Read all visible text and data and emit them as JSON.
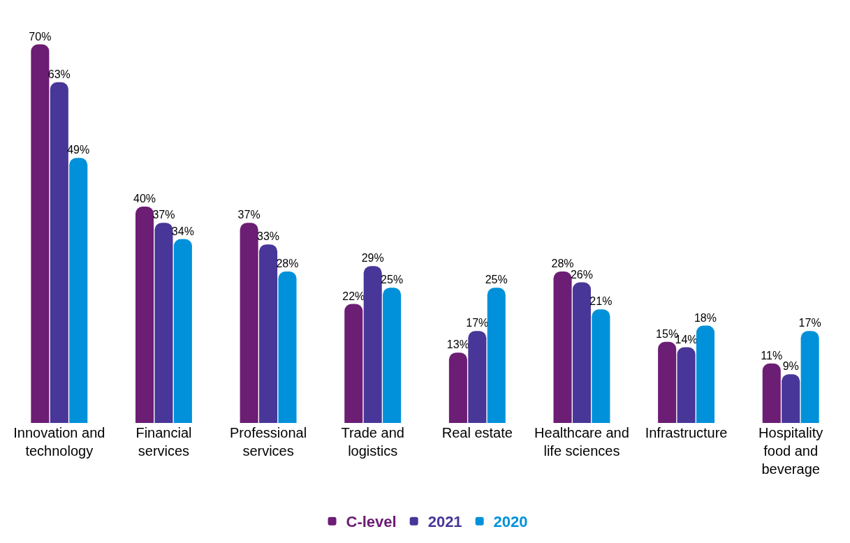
{
  "chart_data": {
    "type": "bar",
    "categories": [
      "Innovation and technology",
      "Financial services",
      "Professional services",
      "Trade and logistics",
      "Real estate",
      "Healthcare and life sciences",
      "Infrastructure",
      "Hospitality food and beverage"
    ],
    "series": [
      {
        "name": "C-level",
        "color": "#6c1d74",
        "values": [
          70,
          40,
          37,
          22,
          13,
          28,
          15,
          11
        ],
        "value_labels": [
          "70%",
          "40%",
          "37%",
          "22%",
          "13%",
          "28%",
          "15%",
          "11%"
        ]
      },
      {
        "name": "2021",
        "color": "#483698",
        "values": [
          63,
          37,
          33,
          29,
          17,
          26,
          14,
          9
        ],
        "value_labels": [
          "63%",
          "37%",
          "33%",
          "29%",
          "17%",
          "26%",
          "14%",
          "9%"
        ]
      },
      {
        "name": "2020",
        "color": "#0091da",
        "values": [
          49,
          34,
          28,
          25,
          25,
          21,
          18,
          17
        ],
        "value_labels": [
          "49%",
          "34%",
          "28%",
          "25%",
          "25%",
          "21%",
          "18%",
          "17%"
        ]
      }
    ],
    "legend": "bottom"
  }
}
